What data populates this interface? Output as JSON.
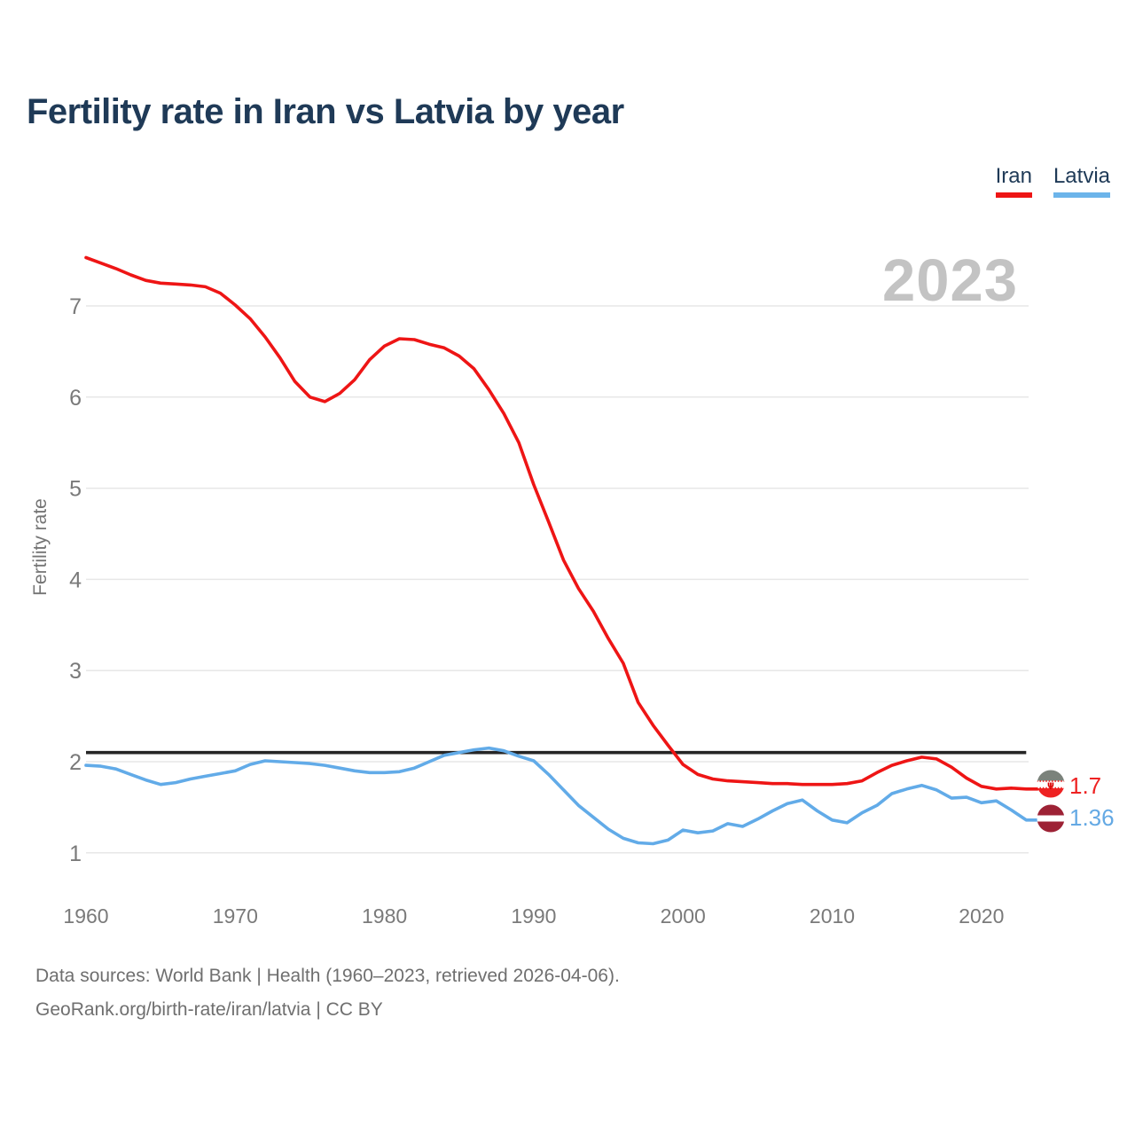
{
  "page": {
    "title": "Fertility rate in Iran vs Latvia by year",
    "watermark_year": "2023"
  },
  "legend": {
    "items": [
      {
        "label": "Iran",
        "color": "#ee1515"
      },
      {
        "label": "Latvia",
        "color": "#6cb4ea"
      }
    ]
  },
  "end_labels": {
    "iran": {
      "text": "1.7",
      "color": "#ee2222"
    },
    "latvia": {
      "text": "1.36",
      "color": "#64a9e4"
    }
  },
  "icons": {
    "iran_flag": "iran-flag-circle",
    "latvia_flag": "latvia-flag-circle"
  },
  "footer": {
    "line1": "Data sources: World Bank | Health (1960–2023, retrieved 2026-04-06).",
    "line2": "GeoRank.org/birth-rate/iran/latvia | CC BY"
  },
  "chart_data": {
    "type": "line",
    "title": "Fertility rate in Iran vs Latvia by year",
    "xlabel": "",
    "ylabel": "Fertility rate",
    "grid": "horizontal",
    "legend_position": "top-right",
    "ylim": [
      0.6,
      7.75
    ],
    "xlim": [
      1960,
      2023
    ],
    "yticks": [
      1,
      2,
      3,
      4,
      5,
      6,
      7
    ],
    "xticks": [
      1960,
      1970,
      1980,
      1990,
      2000,
      2010,
      2020
    ],
    "reference_line": {
      "value": 2.1,
      "color": "#262626"
    },
    "watermark": "2023",
    "x_years": [
      1960,
      1961,
      1962,
      1963,
      1964,
      1965,
      1966,
      1967,
      1968,
      1969,
      1970,
      1971,
      1972,
      1973,
      1974,
      1975,
      1976,
      1977,
      1978,
      1979,
      1980,
      1981,
      1982,
      1983,
      1984,
      1985,
      1986,
      1987,
      1988,
      1989,
      1990,
      1991,
      1992,
      1993,
      1994,
      1995,
      1996,
      1997,
      1998,
      1999,
      2000,
      2001,
      2002,
      2003,
      2004,
      2005,
      2006,
      2007,
      2008,
      2009,
      2010,
      2011,
      2012,
      2013,
      2014,
      2015,
      2016,
      2017,
      2018,
      2019,
      2020,
      2021,
      2022,
      2023
    ],
    "series": [
      {
        "name": "Iran",
        "color": "#ee1515",
        "values": [
          7.53,
          7.47,
          7.41,
          7.34,
          7.28,
          7.25,
          7.24,
          7.23,
          7.21,
          7.14,
          7.01,
          6.86,
          6.66,
          6.43,
          6.17,
          6.0,
          5.95,
          6.04,
          6.19,
          6.41,
          6.56,
          6.64,
          6.63,
          6.58,
          6.54,
          6.45,
          6.31,
          6.08,
          5.82,
          5.5,
          5.04,
          4.63,
          4.21,
          3.9,
          3.65,
          3.35,
          3.08,
          2.65,
          2.4,
          2.18,
          1.97,
          1.86,
          1.81,
          1.79,
          1.78,
          1.77,
          1.76,
          1.76,
          1.75,
          1.75,
          1.75,
          1.76,
          1.79,
          1.88,
          1.96,
          2.01,
          2.05,
          2.03,
          1.94,
          1.82,
          1.73,
          1.7,
          1.71,
          1.7
        ]
      },
      {
        "name": "Latvia",
        "color": "#62abe8",
        "values": [
          1.96,
          1.95,
          1.92,
          1.86,
          1.8,
          1.75,
          1.77,
          1.81,
          1.84,
          1.87,
          1.9,
          1.97,
          2.01,
          2.0,
          1.99,
          1.98,
          1.96,
          1.93,
          1.9,
          1.88,
          1.88,
          1.89,
          1.93,
          2.0,
          2.07,
          2.1,
          2.13,
          2.15,
          2.12,
          2.06,
          2.01,
          1.86,
          1.69,
          1.52,
          1.39,
          1.26,
          1.16,
          1.11,
          1.1,
          1.14,
          1.25,
          1.22,
          1.24,
          1.32,
          1.29,
          1.37,
          1.46,
          1.54,
          1.58,
          1.46,
          1.36,
          1.33,
          1.44,
          1.52,
          1.65,
          1.7,
          1.74,
          1.69,
          1.6,
          1.61,
          1.55,
          1.57,
          1.47,
          1.36
        ]
      }
    ]
  }
}
